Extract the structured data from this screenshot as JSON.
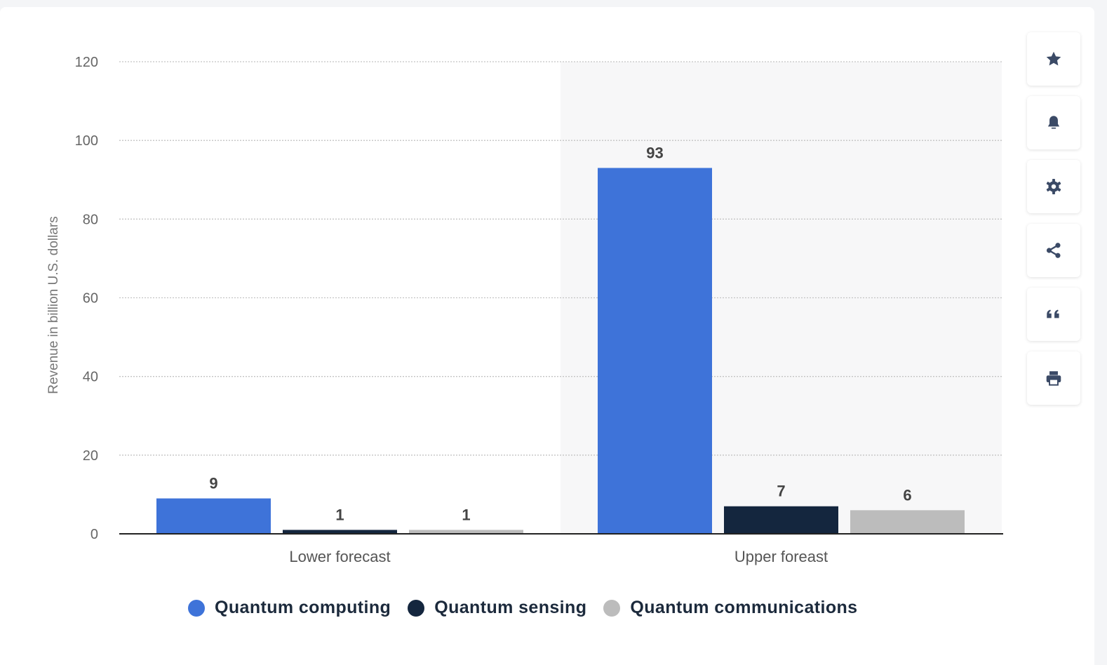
{
  "chart_data": {
    "type": "bar",
    "categories": [
      "Lower forecast",
      "Upper foreast"
    ],
    "series": [
      {
        "name": "Quantum computing",
        "values": [
          9,
          93
        ],
        "labels": [
          "9",
          "93"
        ],
        "color": "#3e73d9"
      },
      {
        "name": "Quantum sensing",
        "values": [
          1,
          7
        ],
        "labels": [
          "1",
          "7"
        ],
        "color": "#14263e"
      },
      {
        "name": "Quantum communications",
        "values": [
          1,
          6
        ],
        "labels": [
          "1",
          "6"
        ],
        "color": "#bcbcbc"
      }
    ],
    "ylabel": "Revenue in billion U.S. dollars",
    "ylim": [
      0,
      120
    ],
    "yticks": [
      "0",
      "20",
      "40",
      "60",
      "80",
      "100",
      "120"
    ],
    "grid": true,
    "legend": "bottom"
  },
  "toolbar": [
    {
      "icon": "star-icon",
      "name": "favorite-button"
    },
    {
      "icon": "bell-icon",
      "name": "notification-button"
    },
    {
      "icon": "gear-icon",
      "name": "settings-button"
    },
    {
      "icon": "share-icon",
      "name": "share-button"
    },
    {
      "icon": "quote-icon",
      "name": "cite-button"
    },
    {
      "icon": "printer-icon",
      "name": "print-button"
    }
  ],
  "colors": {
    "icon": "#3b4a66",
    "grid": "#cccccc",
    "axis": "#222222",
    "highlight_band": "#f7f7f8"
  }
}
